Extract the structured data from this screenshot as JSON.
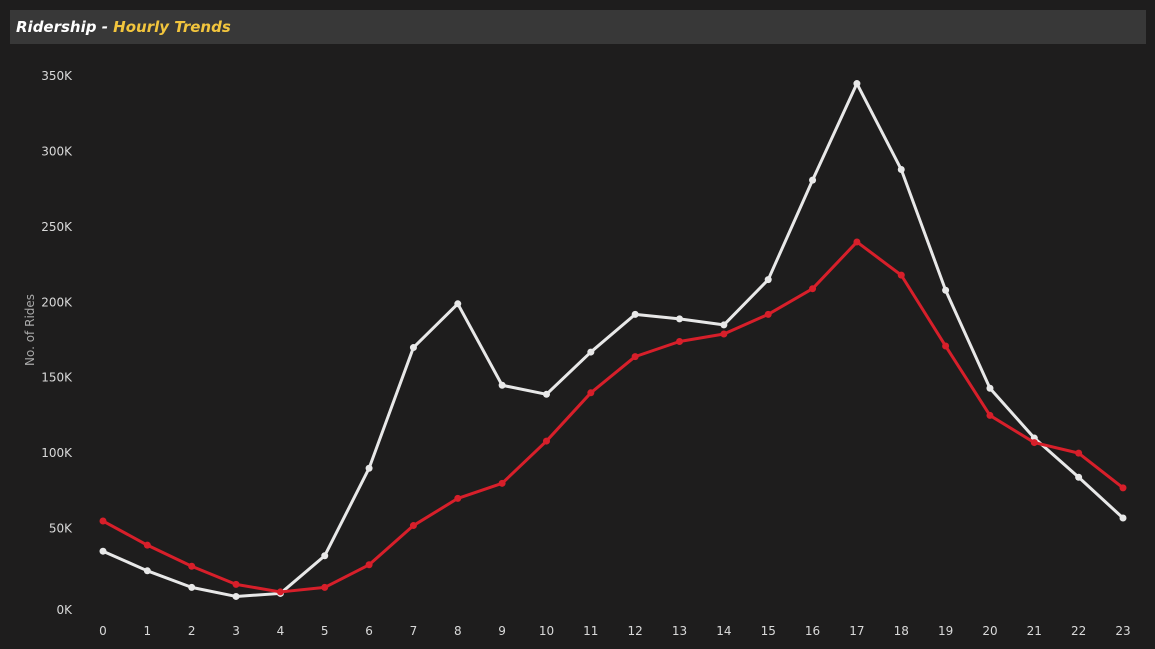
{
  "header": {
    "title": "Ridership",
    "separator": " - ",
    "subtitle": "Hourly Trends"
  },
  "colors": {
    "background": "#1e1d1d",
    "title_bar": "#383838",
    "subtitle": "#f2c53d",
    "series_white": "#e8e8e8",
    "series_red": "#d71f2a"
  },
  "chart_data": {
    "type": "line",
    "title": "Ridership - Hourly Trends",
    "xlabel": "",
    "ylabel": "No. of Rides",
    "x": [
      0,
      1,
      2,
      3,
      4,
      5,
      6,
      7,
      8,
      9,
      10,
      11,
      12,
      13,
      14,
      15,
      16,
      17,
      18,
      19,
      20,
      21,
      22,
      23
    ],
    "ylim": [
      0,
      350000
    ],
    "yticks": [
      0,
      50000,
      100000,
      150000,
      200000,
      250000,
      300000,
      350000
    ],
    "ytick_labels": [
      "0K",
      "50K",
      "100K",
      "150K",
      "200K",
      "250K",
      "300K",
      "350K"
    ],
    "grid": false,
    "legend": "none",
    "series": [
      {
        "color": "#e8e8e8",
        "values": [
          35000,
          22000,
          11000,
          5000,
          7000,
          32000,
          90000,
          170000,
          199000,
          145000,
          139000,
          167000,
          192000,
          189000,
          185000,
          215000,
          281000,
          345000,
          288000,
          208000,
          143000,
          110000,
          84000,
          57000
        ]
      },
      {
        "color": "#d71f2a",
        "values": [
          55000,
          39000,
          25000,
          13000,
          8000,
          11000,
          26000,
          52000,
          70000,
          80000,
          108000,
          140000,
          164000,
          174000,
          179000,
          192000,
          209000,
          240000,
          218000,
          171000,
          125000,
          107000,
          100000,
          77000
        ]
      }
    ]
  }
}
